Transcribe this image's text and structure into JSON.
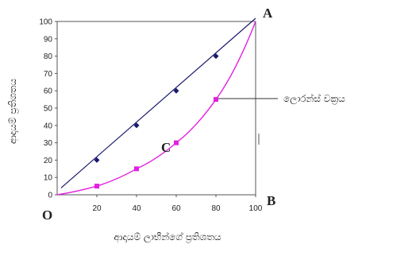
{
  "chart_data": {
    "type": "line",
    "x": [
      0,
      20,
      40,
      60,
      80,
      100
    ],
    "xlim": [
      0,
      100
    ],
    "ylim": [
      0,
      100
    ],
    "xticks": [
      "20",
      "40",
      "60",
      "80",
      "100"
    ],
    "yticks": [
      "0",
      "10",
      "20",
      "30",
      "40",
      "50",
      "60",
      "70",
      "80",
      "90",
      "100"
    ],
    "xlabel": "ආදායම් ලාභීන්ගේ ප්‍රතිශතය",
    "ylabel": "ආදායම් ප්‍රතිශතය",
    "series": [
      {
        "values": [
          0,
          20,
          40,
          60,
          80,
          100
        ],
        "color": "#1a1a6e",
        "marker": "diamond"
      },
      {
        "values": [
          0,
          5,
          15,
          30,
          55,
          100
        ],
        "color": "#e020e0",
        "marker": "square"
      }
    ],
    "annotations": {
      "A": "A",
      "B": "B",
      "C": "C",
      "O": "O",
      "curve_label": "ලොරන්ස් වක්‍රය"
    },
    "grid": false
  }
}
